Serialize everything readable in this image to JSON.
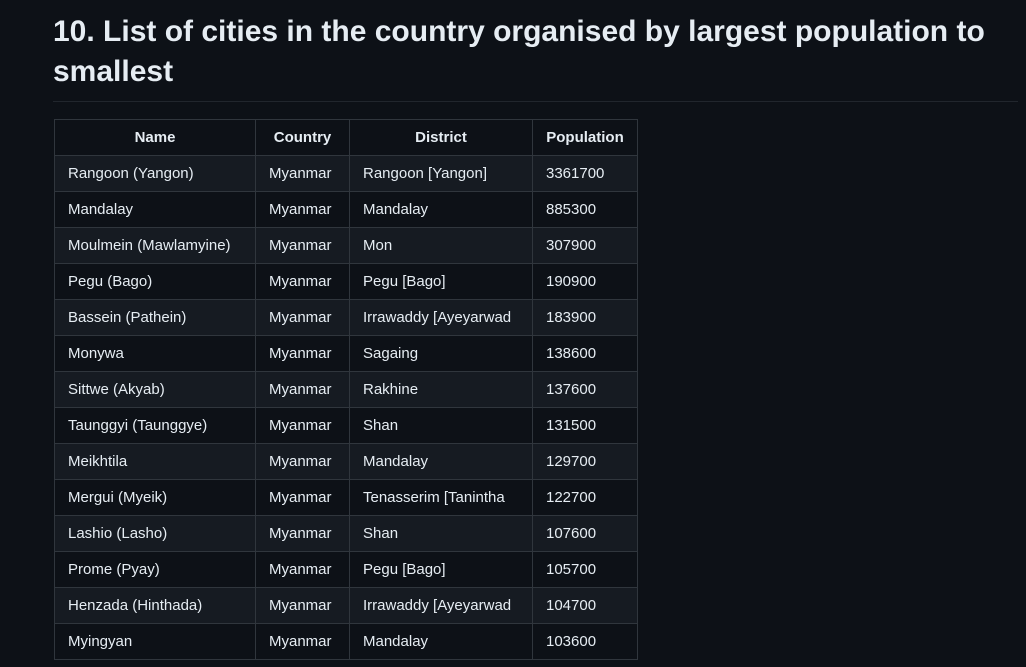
{
  "heading": "10. List of cities in the country organised by largest population to smallest",
  "table": {
    "headers": [
      "Name",
      "Country",
      "District",
      "Population"
    ],
    "rows": [
      [
        "Rangoon (Yangon)",
        "Myanmar",
        "Rangoon [Yangon]",
        "3361700"
      ],
      [
        "Mandalay",
        "Myanmar",
        "Mandalay",
        "885300"
      ],
      [
        "Moulmein (Mawlamyine)",
        "Myanmar",
        "Mon",
        "307900"
      ],
      [
        "Pegu (Bago)",
        "Myanmar",
        "Pegu [Bago]",
        "190900"
      ],
      [
        "Bassein (Pathein)",
        "Myanmar",
        "Irrawaddy [Ayeyarwad",
        "183900"
      ],
      [
        "Monywa",
        "Myanmar",
        "Sagaing",
        "138600"
      ],
      [
        "Sittwe (Akyab)",
        "Myanmar",
        "Rakhine",
        "137600"
      ],
      [
        "Taunggyi (Taunggye)",
        "Myanmar",
        "Shan",
        "131500"
      ],
      [
        "Meikhtila",
        "Myanmar",
        "Mandalay",
        "129700"
      ],
      [
        "Mergui (Myeik)",
        "Myanmar",
        "Tenasserim [Tanintha",
        "122700"
      ],
      [
        "Lashio (Lasho)",
        "Myanmar",
        "Shan",
        "107600"
      ],
      [
        "Prome (Pyay)",
        "Myanmar",
        "Pegu [Bago]",
        "105700"
      ],
      [
        "Henzada (Hinthada)",
        "Myanmar",
        "Irrawaddy [Ayeyarwad",
        "104700"
      ],
      [
        "Myingyan",
        "Myanmar",
        "Mandalay",
        "103600"
      ]
    ]
  }
}
